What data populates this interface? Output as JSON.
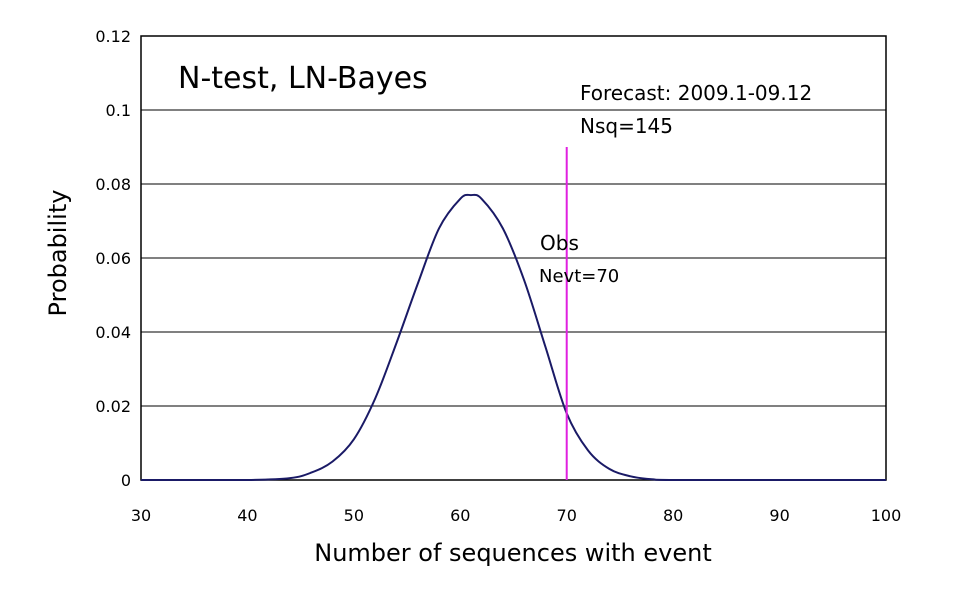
{
  "chart_data": {
    "type": "line",
    "title": "N-test, LN-Bayes",
    "xlabel": "Number of sequences with event",
    "ylabel": "Probability",
    "xlim": [
      30,
      100
    ],
    "ylim": [
      0,
      0.12
    ],
    "xticks": [
      30,
      40,
      50,
      60,
      70,
      80,
      90,
      100
    ],
    "yticks": [
      0,
      0.02,
      0.04,
      0.06,
      0.08,
      0.1,
      0.12
    ],
    "ytick_labels": [
      "0",
      "0.02",
      "0.04",
      "0.06",
      "0.08",
      "0.1",
      "0.12"
    ],
    "grid": "horizontal",
    "line_color": "#1a1a66",
    "obs_color": "#e020e0",
    "series": [
      {
        "x": [
          30,
          40,
          44,
          46,
          48,
          50,
          52,
          54,
          56,
          58,
          60,
          61,
          62,
          64,
          66,
          68,
          70,
          72,
          74,
          76,
          78,
          80,
          90,
          100
        ],
        "values": [
          0,
          0,
          0.0005,
          0.002,
          0.005,
          0.011,
          0.022,
          0.037,
          0.053,
          0.068,
          0.076,
          0.077,
          0.076,
          0.068,
          0.054,
          0.036,
          0.018,
          0.008,
          0.003,
          0.001,
          0.0002,
          0,
          0,
          0
        ]
      }
    ],
    "annotations": {
      "forecast": "Forecast: 2009.1-09.12",
      "nsq": "Nsq=145",
      "obs_label": "Obs",
      "nevt": "Nevt=70",
      "obs_x": 70,
      "obs_y_top": 0.09
    }
  }
}
